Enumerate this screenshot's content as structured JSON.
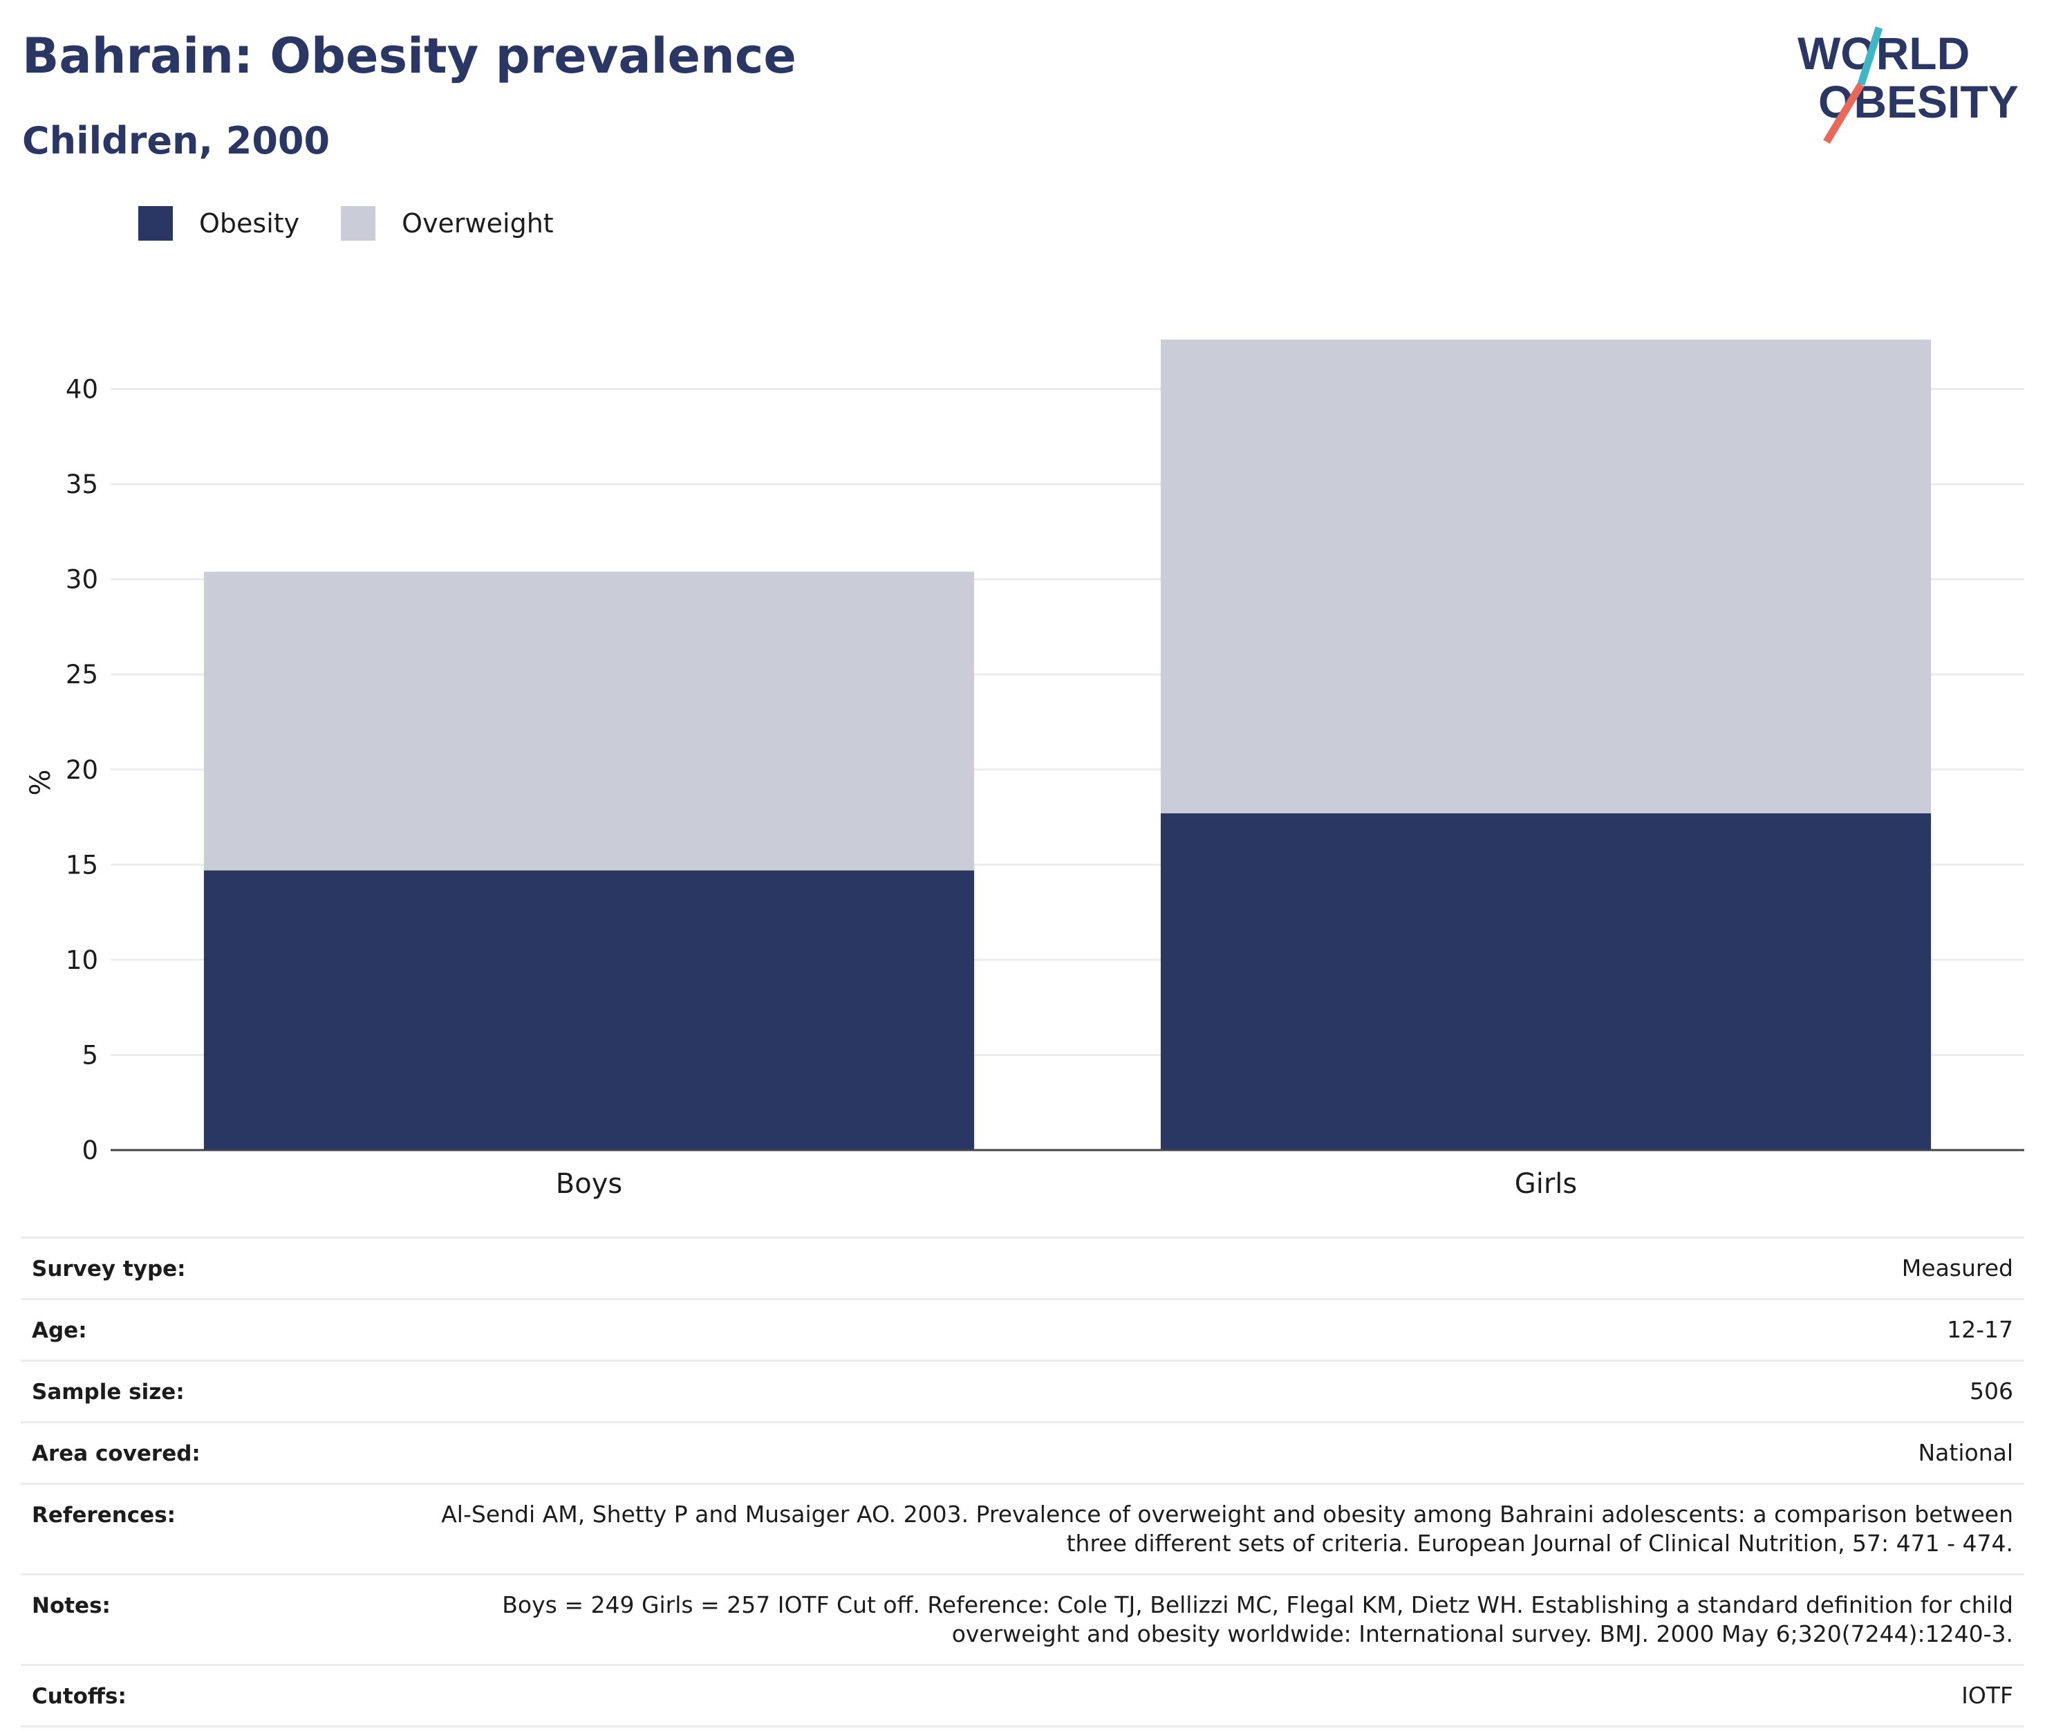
{
  "header": {
    "title": "Bahrain: Obesity prevalence",
    "subtitle": "Children, 2000"
  },
  "logo": {
    "line1": "WORLD",
    "line2": "OBESITY"
  },
  "colors": {
    "obesity": "#2b3763",
    "overweight": "#caccd8",
    "text": "#2a3663"
  },
  "chart_data": {
    "type": "bar",
    "stacked": true,
    "categories": [
      "Boys",
      "Girls"
    ],
    "series": [
      {
        "name": "Obesity",
        "values": [
          14.7,
          17.7
        ]
      },
      {
        "name": "Overweight",
        "values": [
          15.7,
          24.9
        ]
      }
    ],
    "ylabel": "%",
    "ylim": [
      0,
      43
    ],
    "yticks": [
      0,
      5,
      10,
      15,
      20,
      25,
      30,
      35,
      40
    ],
    "grid": true,
    "legend": "top-left"
  },
  "details": [
    {
      "label": "Survey type:",
      "value": "Measured"
    },
    {
      "label": "Age:",
      "value": "12-17"
    },
    {
      "label": "Sample size:",
      "value": "506"
    },
    {
      "label": "Area covered:",
      "value": "National"
    },
    {
      "label": "References:",
      "value": "Al-Sendi AM, Shetty P and Musaiger AO. 2003. Prevalence of overweight and obesity among Bahraini adolescents: a comparison between three different sets of criteria. European Journal of Clinical Nutrition, 57: 471 - 474."
    },
    {
      "label": "Notes:",
      "value": "Boys = 249 Girls = 257 IOTF Cut off. Reference: Cole TJ, Bellizzi MC, Flegal KM, Dietz WH. Establishing a standard definition for child overweight and obesity worldwide: International survey. BMJ. 2000 May 6;320(7244):1240-3."
    },
    {
      "label": "Cutoffs:",
      "value": "IOTF"
    }
  ]
}
